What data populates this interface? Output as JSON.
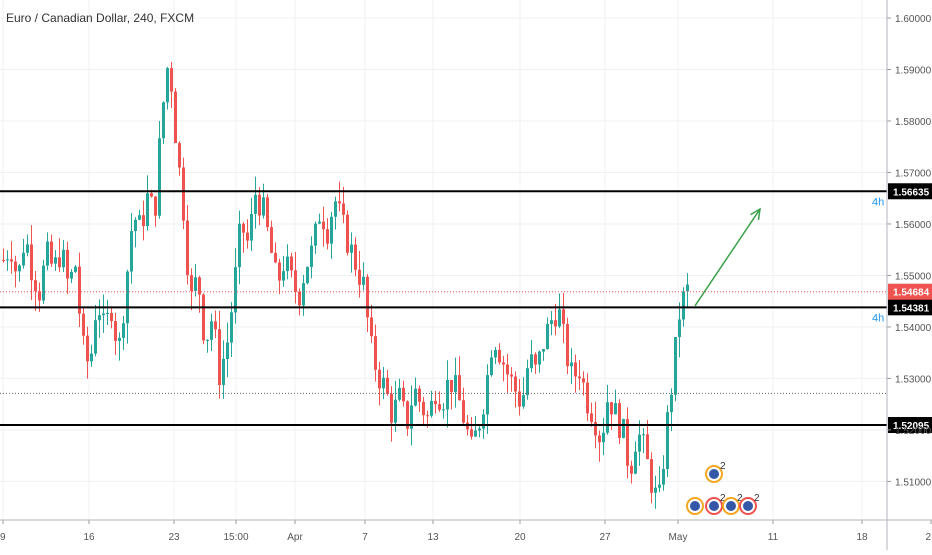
{
  "chart_data": {
    "type": "candlestick",
    "title": "Euro / Canadian Dollar, 240, FXCM",
    "y_axis": {
      "ylim": [
        1.5025,
        1.6035
      ],
      "ticks": [
        "1.60000",
        "1.59000",
        "1.58000",
        "1.57000",
        "1.56000",
        "1.55000",
        "1.54000",
        "1.53000",
        "1.52000",
        "1.51000"
      ],
      "tick_values": [
        1.6,
        1.59,
        1.58,
        1.57,
        1.56,
        1.55,
        1.54,
        1.53,
        1.52,
        1.51
      ]
    },
    "x_axis": {
      "ticks": [
        "9",
        "16",
        "23",
        "15:00",
        "Apr",
        "7",
        "13",
        "20",
        "27",
        "May",
        "11",
        "18",
        "2"
      ]
    },
    "levels": [
      {
        "value": 1.56635,
        "label": "1.56635",
        "style": "black"
      },
      {
        "value": 1.54381,
        "label": "1.54381",
        "style": "black"
      },
      {
        "value": 1.52095,
        "label": "1.52095",
        "style": "black"
      },
      {
        "value": 1.54684,
        "label": "1.54684",
        "style": "current",
        "color": "#ef5350"
      },
      {
        "value": 1.5271,
        "style": "dotted"
      }
    ],
    "level_tags": [
      "4h",
      "4h"
    ],
    "arrow": {
      "from_y": 1.5441,
      "to_y": 1.5629
    },
    "event_badge": "2",
    "colors": {
      "up": "#26a69a",
      "down": "#ef5350",
      "current": "#ef5350",
      "arrow": "#3aa14a",
      "tag": "#2196f3"
    },
    "path": [
      1.553,
      1.556,
      1.549,
      1.558,
      1.551,
      1.547,
      1.554,
      1.551,
      1.555,
      1.548,
      1.552,
      1.536,
      1.532,
      1.546,
      1.539,
      1.544,
      1.535,
      1.548,
      1.562,
      1.559,
      1.565,
      1.562,
      1.581,
      1.593,
      1.576,
      1.563,
      1.545,
      1.55,
      1.537,
      1.542,
      1.531,
      1.536,
      1.547,
      1.56,
      1.556,
      1.566,
      1.563,
      1.556,
      1.548,
      1.553,
      1.549,
      1.546,
      1.552,
      1.555,
      1.563,
      1.559,
      1.565,
      1.56,
      1.556,
      1.552,
      1.548,
      1.536,
      1.531,
      1.528,
      1.523,
      1.526,
      1.521,
      1.528,
      1.525,
      1.522,
      1.528,
      1.526,
      1.53,
      1.527,
      1.522,
      1.516,
      1.521,
      1.528,
      1.539,
      1.535,
      1.531,
      1.528,
      1.525,
      1.534,
      1.531,
      1.537,
      1.541,
      1.544,
      1.536,
      1.53,
      1.532,
      1.526,
      1.523,
      1.518,
      1.527,
      1.523,
      1.52,
      1.512,
      1.52,
      1.516,
      1.51,
      1.505,
      1.519,
      1.531,
      1.544,
      1.547
    ]
  }
}
